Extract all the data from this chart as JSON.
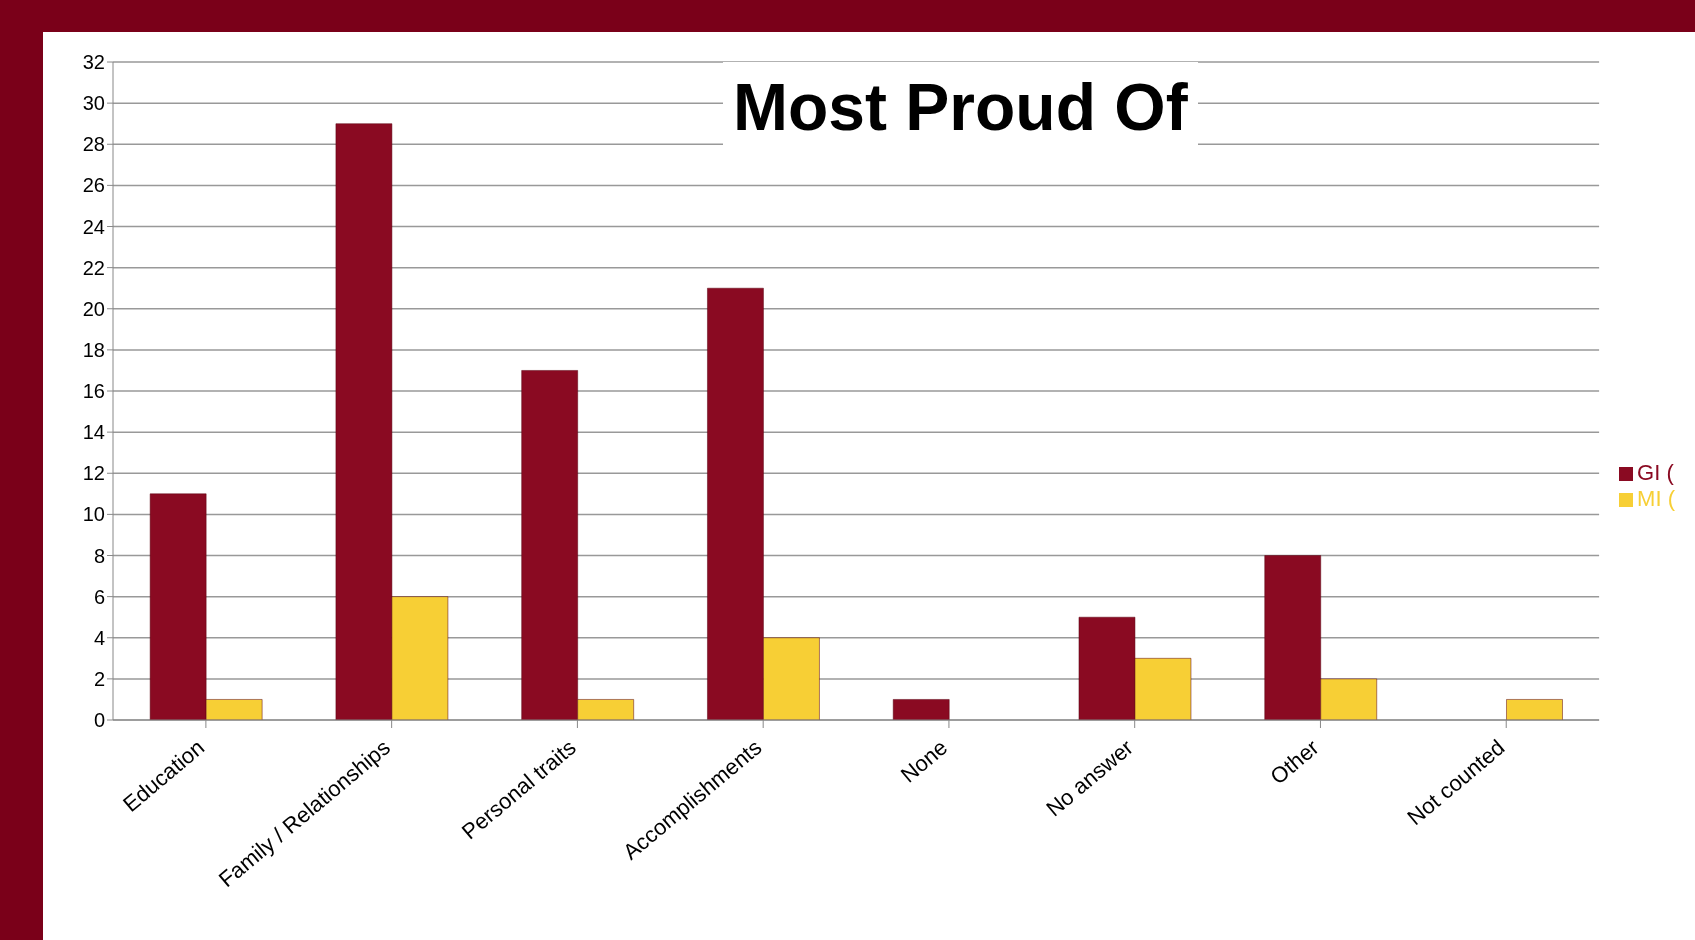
{
  "chart_data": {
    "type": "bar",
    "title": "Most Proud Of",
    "categories": [
      "Education",
      "Family / Relationships",
      "Personal traits",
      "Accomplishments",
      "None",
      "No answer",
      "Other",
      "Not counted"
    ],
    "series": [
      {
        "name": "GI (",
        "color": "#8a0a22",
        "values": [
          11,
          29,
          17,
          21,
          1,
          5,
          8,
          0
        ]
      },
      {
        "name": "MI (",
        "color": "#f7cf35",
        "values": [
          1,
          6,
          1,
          4,
          0,
          3,
          2,
          1
        ]
      }
    ],
    "ylim": [
      0,
      32
    ],
    "yticks": [
      0,
      2,
      4,
      6,
      8,
      10,
      12,
      14,
      16,
      18,
      20,
      22,
      24,
      26,
      28,
      30,
      32
    ],
    "grid": "y",
    "legend": "right"
  }
}
